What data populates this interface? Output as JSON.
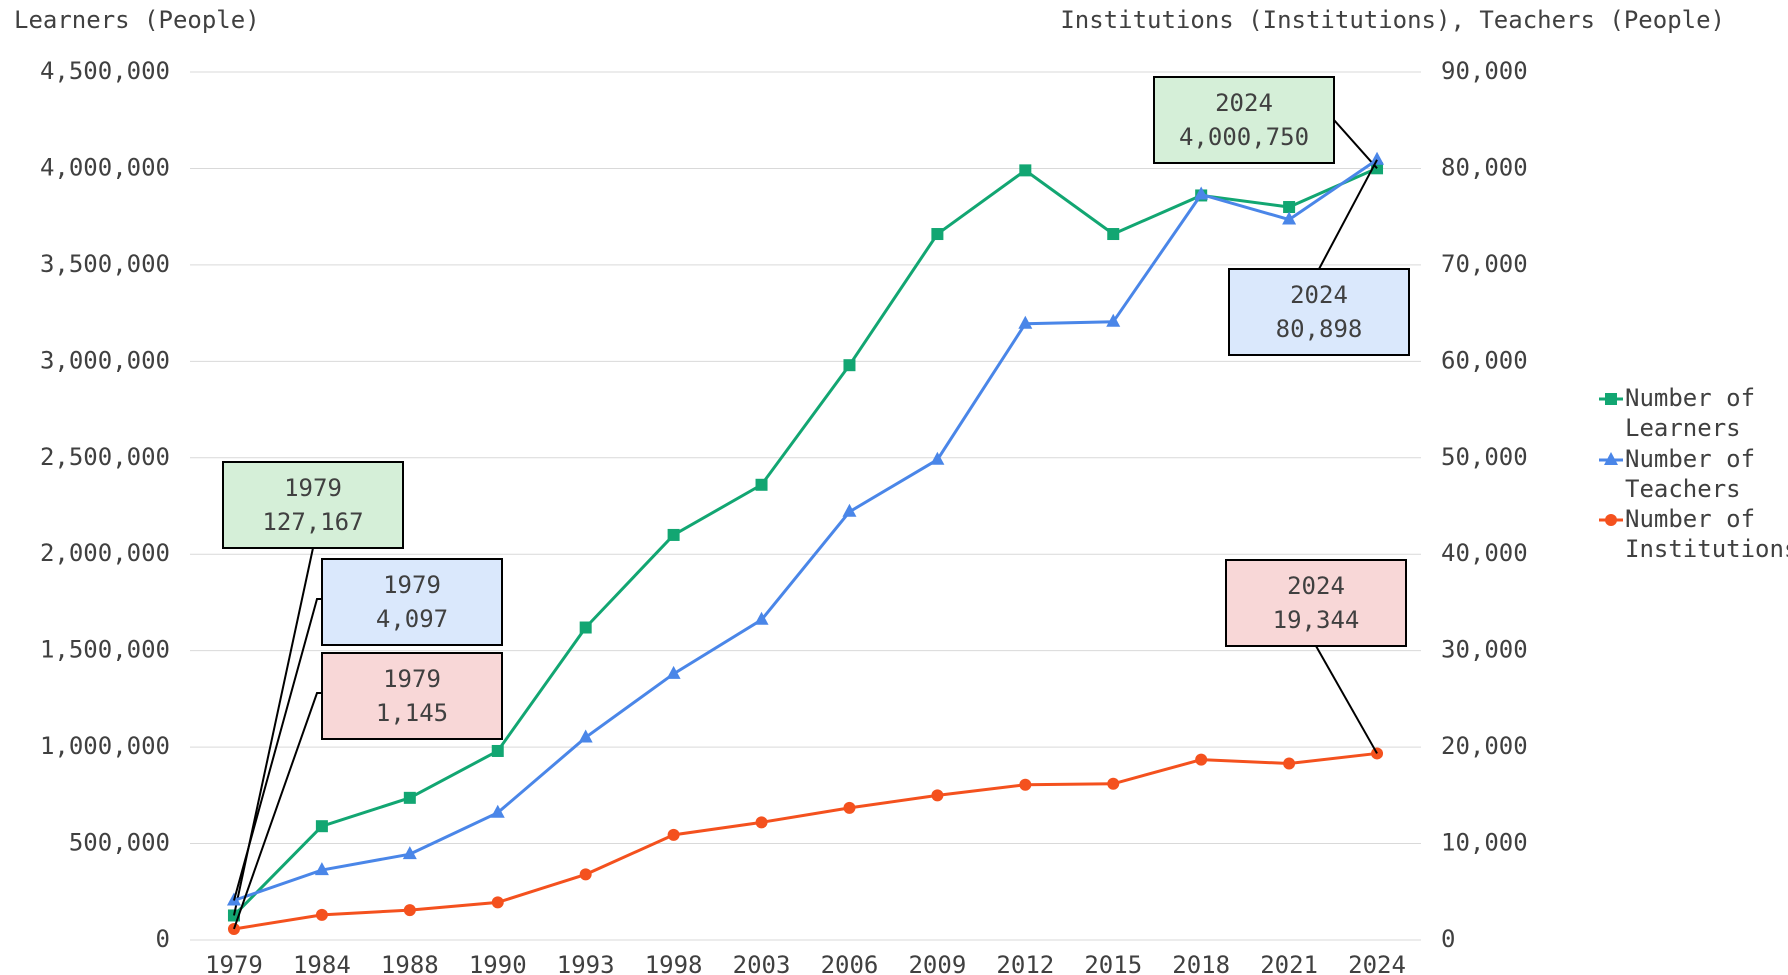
{
  "chart_data": {
    "type": "line",
    "y_axis_label": "Learners (People)",
    "y2_axis_label": "Institutions (Institutions), Teachers (People)",
    "categories": [
      "1979",
      "1984",
      "1988",
      "1990",
      "1993",
      "1998",
      "2003",
      "2006",
      "2009",
      "2012",
      "2015",
      "2018",
      "2021",
      "2024"
    ],
    "series": [
      {
        "name": "Number of Learners",
        "color": "#12a672",
        "marker": "square",
        "values": [
          127167,
          590000,
          737000,
          980000,
          1620000,
          2100000,
          2360000,
          2980000,
          3660000,
          3990000,
          3660000,
          3860000,
          3800000,
          4000750
        ],
        "value_labels": [
          "127,167",
          null,
          null,
          null,
          null,
          null,
          null,
          null,
          null,
          null,
          null,
          null,
          null,
          "4,000,750"
        ]
      },
      {
        "name": "Number of Teachers",
        "color": "#4a86e8",
        "marker": "triangle",
        "axis": "y2",
        "values": [
          4097,
          7250,
          8900,
          13200,
          21000,
          27600,
          33200,
          44400,
          49800,
          63900,
          64100,
          77300,
          74700,
          80898
        ],
        "value_labels": [
          "4,097",
          null,
          null,
          null,
          null,
          null,
          null,
          null,
          null,
          null,
          null,
          null,
          null,
          "80,898"
        ]
      },
      {
        "name": "Number of Institutions",
        "color": "#f4511e",
        "marker": "circle",
        "axis": "y2",
        "values": [
          1145,
          2600,
          3100,
          3900,
          6800,
          10900,
          12200,
          13700,
          15000,
          16100,
          16200,
          18700,
          18300,
          19344
        ],
        "value_labels": [
          "1,145",
          null,
          null,
          null,
          null,
          null,
          null,
          null,
          null,
          null,
          null,
          null,
          null,
          "19,344"
        ]
      }
    ],
    "ylim": [
      0,
      4500000
    ],
    "yticks": [
      0,
      {
        "value": 500000,
        "label": "500,000"
      },
      {
        "value": 1000000,
        "label": "1,000,000"
      },
      {
        "value": 1500000,
        "label": "1,500,000"
      },
      {
        "value": 2000000,
        "label": "2,000,000"
      },
      {
        "value": 2500000,
        "label": "2,500,000"
      },
      {
        "value": 3000000,
        "label": "3,000,000"
      },
      {
        "value": 3500000,
        "label": "3,500,000"
      },
      {
        "value": 4000000,
        "label": "4,000,000"
      },
      {
        "value": 4500000,
        "label": "4,500,000"
      }
    ],
    "y2lim": [
      0,
      90000
    ],
    "y2ticks": [
      0,
      {
        "value": 10000,
        "label": "10,000"
      },
      {
        "value": 20000,
        "label": "20,000"
      },
      {
        "value": 30000,
        "label": "30,000"
      },
      {
        "value": 40000,
        "label": "40,000"
      },
      {
        "value": 50000,
        "label": "50,000"
      },
      {
        "value": 60000,
        "label": "60,000"
      },
      {
        "value": 70000,
        "label": "70,000"
      },
      {
        "value": 80000,
        "label": "80,000"
      },
      {
        "value": 90000,
        "label": "90,000"
      }
    ],
    "grid": true,
    "legend": "right"
  }
}
